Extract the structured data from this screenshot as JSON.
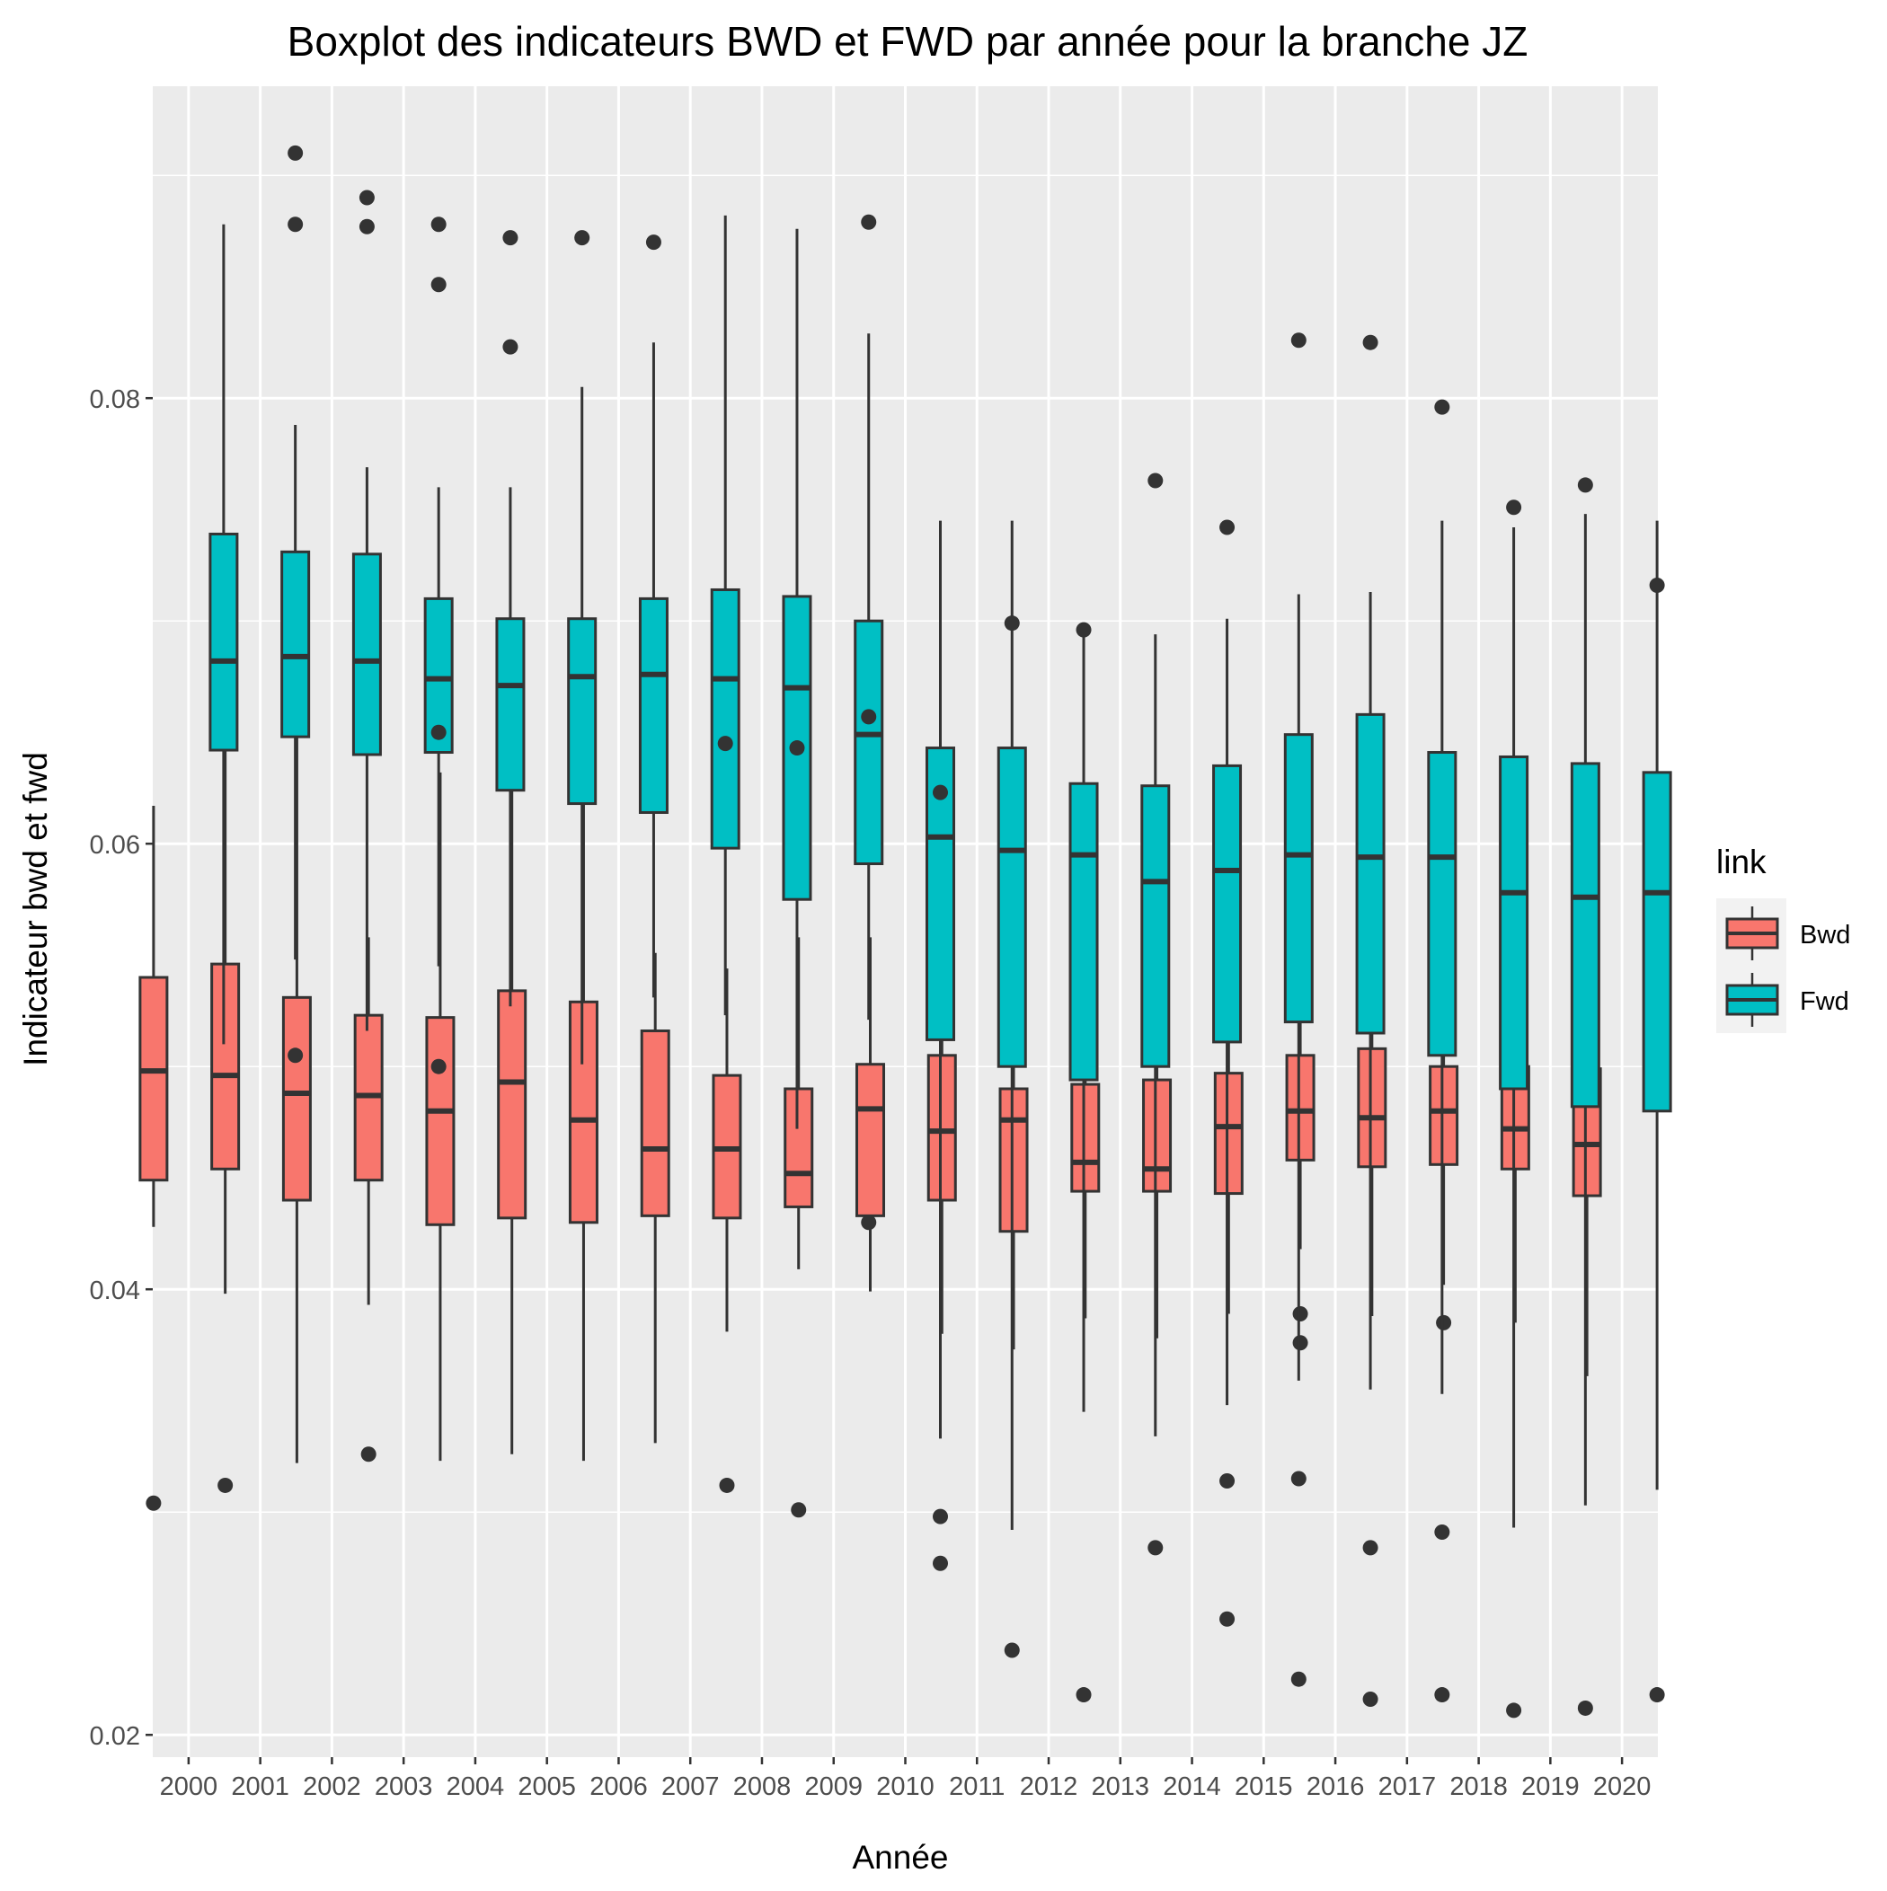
{
  "chart_data": {
    "type": "boxplot",
    "title": "Boxplot des indicateurs BWD et FWD par année pour la branche JZ",
    "xlabel": "Année",
    "ylabel": "Indicateur bwd et fwd",
    "ylim": [
      0.019,
      0.094
    ],
    "yticks": [
      0.02,
      0.04,
      0.06,
      0.08
    ],
    "ytick_labels": [
      "0.02",
      "0.04",
      "0.06",
      "0.08"
    ],
    "categories": [
      "2000",
      "2001",
      "2002",
      "2003",
      "2004",
      "2005",
      "2006",
      "2007",
      "2008",
      "2009",
      "2010",
      "2011",
      "2012",
      "2013",
      "2014",
      "2015",
      "2016",
      "2017",
      "2018",
      "2019",
      "2020"
    ],
    "legend": {
      "title": "link",
      "position": "right"
    },
    "grid": true,
    "background": "#EBEBEB",
    "series": [
      {
        "name": "Bwd",
        "color": "#F8766D",
        "boxes": [
          {
            "whisker_low": 0.0428,
            "q1": 0.0449,
            "median": 0.0498,
            "q3": 0.054,
            "whisker_high": 0.0617,
            "outliers": [
              0.0304
            ]
          },
          {
            "whisker_low": 0.0398,
            "q1": 0.0454,
            "median": 0.0496,
            "q3": 0.0546,
            "whisker_high": 0.0642,
            "outliers": [
              0.0312
            ]
          },
          {
            "whisker_low": 0.0322,
            "q1": 0.044,
            "median": 0.0488,
            "q3": 0.0531,
            "whisker_high": 0.0649,
            "outliers": []
          },
          {
            "whisker_low": 0.0393,
            "q1": 0.0449,
            "median": 0.0487,
            "q3": 0.0523,
            "whisker_high": 0.0558,
            "outliers": [
              0.0326
            ]
          },
          {
            "whisker_low": 0.0323,
            "q1": 0.0429,
            "median": 0.048,
            "q3": 0.0522,
            "whisker_high": 0.0632,
            "outliers": []
          },
          {
            "whisker_low": 0.0326,
            "q1": 0.0432,
            "median": 0.0493,
            "q3": 0.0534,
            "whisker_high": 0.0645,
            "outliers": []
          },
          {
            "whisker_low": 0.0323,
            "q1": 0.043,
            "median": 0.0476,
            "q3": 0.0529,
            "whisker_high": 0.0667,
            "outliers": []
          },
          {
            "whisker_low": 0.0331,
            "q1": 0.0433,
            "median": 0.0463,
            "q3": 0.0516,
            "whisker_high": 0.0551,
            "outliers": []
          },
          {
            "whisker_low": 0.0381,
            "q1": 0.0432,
            "median": 0.0463,
            "q3": 0.0496,
            "whisker_high": 0.0544,
            "outliers": [
              0.0312
            ]
          },
          {
            "whisker_low": 0.0409,
            "q1": 0.0437,
            "median": 0.0452,
            "q3": 0.049,
            "whisker_high": 0.0558,
            "outliers": [
              0.0301
            ]
          },
          {
            "whisker_low": 0.0399,
            "q1": 0.0433,
            "median": 0.0481,
            "q3": 0.0501,
            "whisker_high": 0.0558,
            "outliers": []
          },
          {
            "whisker_low": 0.038,
            "q1": 0.044,
            "median": 0.0471,
            "q3": 0.0505,
            "whisker_high": 0.0553,
            "outliers": []
          },
          {
            "whisker_low": 0.0373,
            "q1": 0.0426,
            "median": 0.0476,
            "q3": 0.049,
            "whisker_high": 0.0559,
            "outliers": []
          },
          {
            "whisker_low": 0.0387,
            "q1": 0.0444,
            "median": 0.0457,
            "q3": 0.0492,
            "whisker_high": 0.0539,
            "outliers": []
          },
          {
            "whisker_low": 0.0378,
            "q1": 0.0444,
            "median": 0.0454,
            "q3": 0.0494,
            "whisker_high": 0.0538,
            "outliers": []
          },
          {
            "whisker_low": 0.0389,
            "q1": 0.0443,
            "median": 0.0473,
            "q3": 0.0497,
            "whisker_high": 0.0541,
            "outliers": []
          },
          {
            "whisker_low": 0.0418,
            "q1": 0.0458,
            "median": 0.048,
            "q3": 0.0505,
            "whisker_high": 0.0553,
            "outliers": [
              0.0389,
              0.0376
            ]
          },
          {
            "whisker_low": 0.0388,
            "q1": 0.0455,
            "median": 0.0477,
            "q3": 0.0508,
            "whisker_high": 0.0547,
            "outliers": []
          },
          {
            "whisker_low": 0.0402,
            "q1": 0.0456,
            "median": 0.048,
            "q3": 0.05,
            "whisker_high": 0.0544,
            "outliers": [
              0.0385
            ]
          },
          {
            "whisker_low": 0.0385,
            "q1": 0.0454,
            "median": 0.0472,
            "q3": 0.05,
            "whisker_high": 0.0547,
            "outliers": []
          },
          {
            "whisker_low": 0.0361,
            "q1": 0.0442,
            "median": 0.0465,
            "q3": 0.0499,
            "whisker_high": 0.0551,
            "outliers": []
          }
        ]
      },
      {
        "name": "Fwd",
        "color": "#00BFC4",
        "boxes": [
          {
            "whisker_low": 0.051,
            "q1": 0.0642,
            "median": 0.0682,
            "q3": 0.0739,
            "whisker_high": 0.0878,
            "outliers": []
          },
          {
            "whisker_low": 0.0548,
            "q1": 0.0648,
            "median": 0.0684,
            "q3": 0.0731,
            "whisker_high": 0.0788,
            "outliers": [
              0.091,
              0.0878,
              0.0505
            ]
          },
          {
            "whisker_low": 0.0516,
            "q1": 0.064,
            "median": 0.0682,
            "q3": 0.073,
            "whisker_high": 0.0769,
            "outliers": [
              0.089,
              0.0877
            ]
          },
          {
            "whisker_low": 0.0545,
            "q1": 0.0641,
            "median": 0.0674,
            "q3": 0.071,
            "whisker_high": 0.076,
            "outliers": [
              0.0878,
              0.0851,
              0.065,
              0.05
            ]
          },
          {
            "whisker_low": 0.0527,
            "q1": 0.0624,
            "median": 0.0671,
            "q3": 0.0701,
            "whisker_high": 0.076,
            "outliers": [
              0.0872,
              0.0823
            ]
          },
          {
            "whisker_low": 0.0501,
            "q1": 0.0618,
            "median": 0.0675,
            "q3": 0.0701,
            "whisker_high": 0.0805,
            "outliers": [
              0.0872
            ]
          },
          {
            "whisker_low": 0.0531,
            "q1": 0.0614,
            "median": 0.0676,
            "q3": 0.071,
            "whisker_high": 0.0825,
            "outliers": [
              0.087
            ]
          },
          {
            "whisker_low": 0.0523,
            "q1": 0.0598,
            "median": 0.0674,
            "q3": 0.0714,
            "whisker_high": 0.0882,
            "outliers": [
              0.0645
            ]
          },
          {
            "whisker_low": 0.0472,
            "q1": 0.0575,
            "median": 0.067,
            "q3": 0.0711,
            "whisker_high": 0.0876,
            "outliers": [
              0.0643
            ]
          },
          {
            "whisker_low": 0.0521,
            "q1": 0.0591,
            "median": 0.0649,
            "q3": 0.07,
            "whisker_high": 0.0829,
            "outliers": [
              0.0879,
              0.0657,
              0.043
            ]
          },
          {
            "whisker_low": 0.0333,
            "q1": 0.0512,
            "median": 0.0603,
            "q3": 0.0643,
            "whisker_high": 0.0745,
            "outliers": [
              0.0623,
              0.0298,
              0.0277
            ]
          },
          {
            "whisker_low": 0.0292,
            "q1": 0.05,
            "median": 0.0597,
            "q3": 0.0643,
            "whisker_high": 0.0745,
            "outliers": [
              0.0699,
              0.0238
            ]
          },
          {
            "whisker_low": 0.0345,
            "q1": 0.0494,
            "median": 0.0595,
            "q3": 0.0627,
            "whisker_high": 0.0696,
            "outliers": [
              0.0696,
              0.0218
            ]
          },
          {
            "whisker_low": 0.0334,
            "q1": 0.05,
            "median": 0.0583,
            "q3": 0.0626,
            "whisker_high": 0.0694,
            "outliers": [
              0.0763,
              0.0284
            ]
          },
          {
            "whisker_low": 0.0348,
            "q1": 0.0511,
            "median": 0.0588,
            "q3": 0.0635,
            "whisker_high": 0.0701,
            "outliers": [
              0.0742,
              0.0314,
              0.0252
            ]
          },
          {
            "whisker_low": 0.0359,
            "q1": 0.052,
            "median": 0.0595,
            "q3": 0.0649,
            "whisker_high": 0.0712,
            "outliers": [
              0.0826,
              0.0315,
              0.0225
            ]
          },
          {
            "whisker_low": 0.0355,
            "q1": 0.0515,
            "median": 0.0594,
            "q3": 0.0658,
            "whisker_high": 0.0713,
            "outliers": [
              0.0825,
              0.0284,
              0.0216
            ]
          },
          {
            "whisker_low": 0.0353,
            "q1": 0.0505,
            "median": 0.0594,
            "q3": 0.0641,
            "whisker_high": 0.0745,
            "outliers": [
              0.0796,
              0.0291,
              0.0218
            ]
          },
          {
            "whisker_low": 0.0293,
            "q1": 0.049,
            "median": 0.0578,
            "q3": 0.0639,
            "whisker_high": 0.0742,
            "outliers": [
              0.0751,
              0.0211
            ]
          },
          {
            "whisker_low": 0.0303,
            "q1": 0.0482,
            "median": 0.0576,
            "q3": 0.0636,
            "whisker_high": 0.0748,
            "outliers": [
              0.0761,
              0.0212
            ]
          },
          {
            "whisker_low": 0.031,
            "q1": 0.048,
            "median": 0.0578,
            "q3": 0.0632,
            "whisker_high": 0.0745,
            "outliers": [
              0.0716,
              0.0218
            ]
          }
        ]
      }
    ]
  }
}
